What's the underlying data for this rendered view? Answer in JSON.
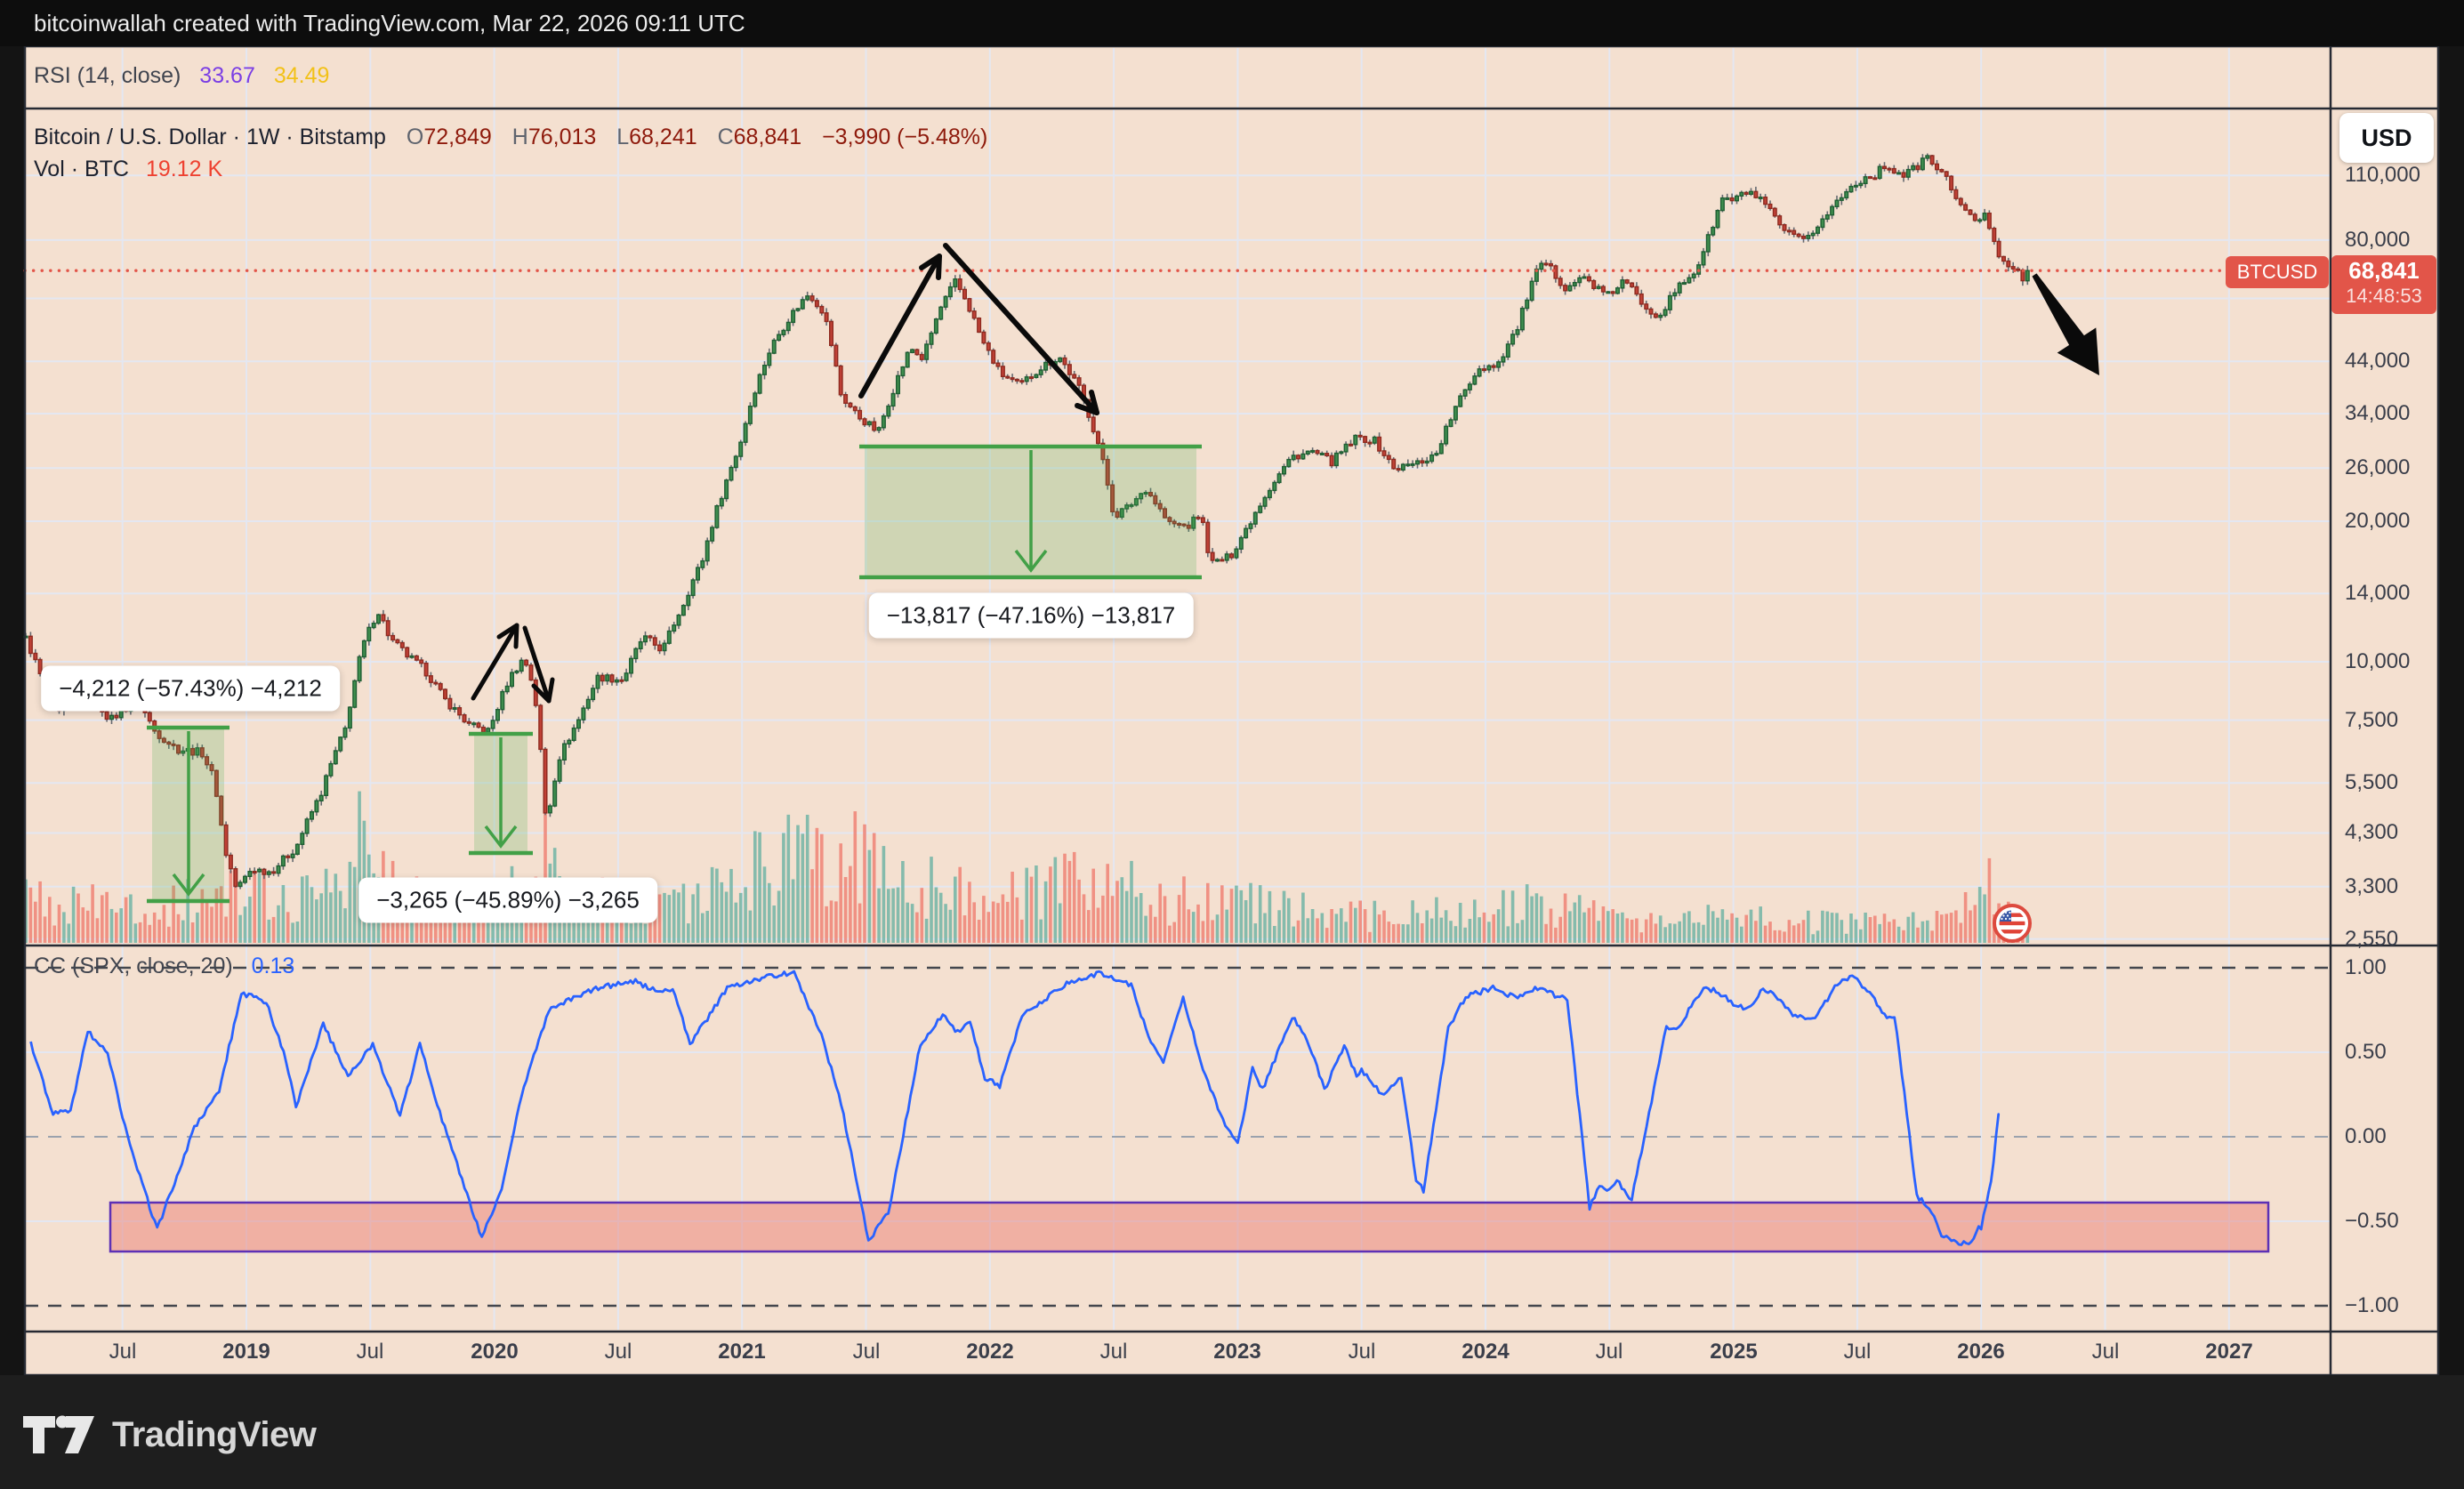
{
  "header": {
    "text": "bitcoinwallah created with TradingView.com, Mar 22, 2026 09:11 UTC"
  },
  "rsi_pane": {
    "label": "RSI (14, close)",
    "value1": "33.67",
    "value2": "34.49"
  },
  "main_pane": {
    "legend": {
      "symbol": "Bitcoin / U.S. Dollar · 1W · Bitstamp",
      "o_label": "O",
      "o": "72,849",
      "h_label": "H",
      "h": "76,013",
      "l_label": "L",
      "l": "68,241",
      "c_label": "C",
      "c": "68,841",
      "change": "−3,990 (−5.48%)"
    },
    "volume_row": {
      "label": "Vol · BTC",
      "value": "19.12 K"
    },
    "currency_button": "USD",
    "last_price_marker": {
      "symbol_label": "BTCUSD",
      "price": "68,841",
      "countdown": "14:48:53"
    },
    "price_axis_labels": [
      {
        "text": "110,000",
        "value": 110000
      },
      {
        "text": "80,000",
        "value": 80000
      },
      {
        "text": "44,000",
        "value": 44000
      },
      {
        "text": "34,000",
        "value": 34000
      },
      {
        "text": "26,000",
        "value": 26000
      },
      {
        "text": "20,000",
        "value": 20000
      },
      {
        "text": "14,000",
        "value": 14000
      },
      {
        "text": "10,000",
        "value": 10000
      },
      {
        "text": "7,500",
        "value": 7500
      },
      {
        "text": "5,500",
        "value": 5500
      },
      {
        "text": "4,300",
        "value": 4300
      },
      {
        "text": "3,300",
        "value": 3300
      },
      {
        "text": "2,550",
        "value": 2550
      }
    ]
  },
  "cc_pane": {
    "label": "CC (SPX, close, 20)",
    "value": "0.13",
    "axis_labels": [
      {
        "text": "1.00",
        "value": 1.0
      },
      {
        "text": "0.50",
        "value": 0.5
      },
      {
        "text": "0.00",
        "value": 0.0
      },
      {
        "text": "−0.50",
        "value": -0.5
      },
      {
        "text": "−1.00",
        "value": -1.0
      }
    ]
  },
  "time_axis": {
    "ticks": [
      {
        "label": "Jul",
        "year": 2018.5
      },
      {
        "label": "2019",
        "year": 2019
      },
      {
        "label": "Jul",
        "year": 2019.5
      },
      {
        "label": "2020",
        "year": 2020
      },
      {
        "label": "Jul",
        "year": 2020.5
      },
      {
        "label": "2021",
        "year": 2021
      },
      {
        "label": "Jul",
        "year": 2021.5
      },
      {
        "label": "2022",
        "year": 2022
      },
      {
        "label": "Jul",
        "year": 2022.5
      },
      {
        "label": "2023",
        "year": 2023
      },
      {
        "label": "Jul",
        "year": 2023.5
      },
      {
        "label": "2024",
        "year": 2024
      },
      {
        "label": "Jul",
        "year": 2024.5
      },
      {
        "label": "2025",
        "year": 2025
      },
      {
        "label": "Jul",
        "year": 2025.5
      },
      {
        "label": "2026",
        "year": 2026
      },
      {
        "label": "Jul",
        "year": 2026.5
      },
      {
        "label": "2027",
        "year": 2027
      }
    ]
  },
  "footer": {
    "brand": "TradingView"
  },
  "colors": {
    "pane_bg": "#f4e0d0",
    "grid": "#e4e7f1",
    "up": "#3f8e4e",
    "up_border": "#1f5e33",
    "down": "#c04136",
    "down_border": "#8e2a20",
    "wick": "#666a70",
    "vol_up": "rgba(105,177,163,0.8)",
    "vol_down": "rgba(239,131,118,0.85)",
    "measure_green": "#42a047",
    "measure_fill": "rgba(76,175,80,0.22)",
    "price_line": "#e25549",
    "cc_line": "#2962ff",
    "band_fill": "rgba(233,109,100,0.42)",
    "band_border": "#5d30b5",
    "separator": "#262a33",
    "annotation": "#0a0a0a"
  },
  "chart_data": {
    "type": "candlestick",
    "symbol": "BTCUSD Bitstamp weekly, log scale",
    "ohlc_current": {
      "open": 72849,
      "high": 76013,
      "low": 68241,
      "close": 68841,
      "change": -3990,
      "change_pct": -5.48
    },
    "volume_current_btc": 19120,
    "rsi": {
      "period": 14,
      "source": "close",
      "value": 33.67,
      "ma_value": 34.49
    },
    "correlation_spx": {
      "length": 20,
      "source": "close",
      "value": 0.13,
      "range": [
        -1,
        1
      ]
    },
    "price_axis_range_visible": [
      2550,
      150000
    ],
    "time_range_visible": [
      "2018-02",
      "2027-06"
    ],
    "price_path_anchors": [
      [
        2018.11,
        11200
      ],
      [
        2018.18,
        9000
      ],
      [
        2018.24,
        7600
      ],
      [
        2018.31,
        9600
      ],
      [
        2018.38,
        8400
      ],
      [
        2018.45,
        7500
      ],
      [
        2018.56,
        8300
      ],
      [
        2018.63,
        7100
      ],
      [
        2018.72,
        6500
      ],
      [
        2018.82,
        6400
      ],
      [
        2018.87,
        5600
      ],
      [
        2018.91,
        4000
      ],
      [
        2018.96,
        3250
      ],
      [
        2019.02,
        3600
      ],
      [
        2019.1,
        3550
      ],
      [
        2019.2,
        4000
      ],
      [
        2019.3,
        5200
      ],
      [
        2019.4,
        7200
      ],
      [
        2019.47,
        10800
      ],
      [
        2019.53,
        12900
      ],
      [
        2019.58,
        11200
      ],
      [
        2019.65,
        10300
      ],
      [
        2019.72,
        9600
      ],
      [
        2019.8,
        8300
      ],
      [
        2019.9,
        7300
      ],
      [
        2019.98,
        7100
      ],
      [
        2020.06,
        9200
      ],
      [
        2020.12,
        10200
      ],
      [
        2020.16,
        8800
      ],
      [
        2020.21,
        4400
      ],
      [
        2020.26,
        6200
      ],
      [
        2020.34,
        7500
      ],
      [
        2020.42,
        9300
      ],
      [
        2020.52,
        9150
      ],
      [
        2020.6,
        11300
      ],
      [
        2020.68,
        10600
      ],
      [
        2020.76,
        13200
      ],
      [
        2020.84,
        16500
      ],
      [
        2020.92,
        23000
      ],
      [
        2020.99,
        29000
      ],
      [
        2021.05,
        38000
      ],
      [
        2021.12,
        47500
      ],
      [
        2021.2,
        55500
      ],
      [
        2021.27,
        61500
      ],
      [
        2021.33,
        56000
      ],
      [
        2021.4,
        37000
      ],
      [
        2021.47,
        33500
      ],
      [
        2021.55,
        31000
      ],
      [
        2021.62,
        39500
      ],
      [
        2021.68,
        47000
      ],
      [
        2021.73,
        44500
      ],
      [
        2021.8,
        57000
      ],
      [
        2021.86,
        65000
      ],
      [
        2021.9,
        60000
      ],
      [
        2021.97,
        48500
      ],
      [
        2022.04,
        41500
      ],
      [
        2022.12,
        39000
      ],
      [
        2022.2,
        42500
      ],
      [
        2022.28,
        45000
      ],
      [
        2022.36,
        38500
      ],
      [
        2022.44,
        29000
      ],
      [
        2022.5,
        20500
      ],
      [
        2022.56,
        21500
      ],
      [
        2022.63,
        23500
      ],
      [
        2022.72,
        19800
      ],
      [
        2022.8,
        19500
      ],
      [
        2022.85,
        20800
      ],
      [
        2022.89,
        16200
      ],
      [
        2022.97,
        16800
      ],
      [
        2023.04,
        19500
      ],
      [
        2023.12,
        23200
      ],
      [
        2023.22,
        27500
      ],
      [
        2023.3,
        28200
      ],
      [
        2023.38,
        26800
      ],
      [
        2023.48,
        30200
      ],
      [
        2023.55,
        29800
      ],
      [
        2023.63,
        25900
      ],
      [
        2023.72,
        26600
      ],
      [
        2023.8,
        27800
      ],
      [
        2023.88,
        35000
      ],
      [
        2023.97,
        42500
      ],
      [
        2024.05,
        43500
      ],
      [
        2024.13,
        52000
      ],
      [
        2024.2,
        67500
      ],
      [
        2024.24,
        71500
      ],
      [
        2024.32,
        63500
      ],
      [
        2024.4,
        66500
      ],
      [
        2024.49,
        60500
      ],
      [
        2024.56,
        65500
      ],
      [
        2024.64,
        58000
      ],
      [
        2024.7,
        55000
      ],
      [
        2024.78,
        63500
      ],
      [
        2024.85,
        69000
      ],
      [
        2024.9,
        81000
      ],
      [
        2024.96,
        99000
      ],
      [
        2025.0,
        97000
      ],
      [
        2025.06,
        102000
      ],
      [
        2025.12,
        96000
      ],
      [
        2025.2,
        84000
      ],
      [
        2025.28,
        79000
      ],
      [
        2025.35,
        87000
      ],
      [
        2025.42,
        97000
      ],
      [
        2025.5,
        107000
      ],
      [
        2025.57,
        110500
      ],
      [
        2025.62,
        116000
      ],
      [
        2025.68,
        110000
      ],
      [
        2025.73,
        113500
      ],
      [
        2025.78,
        120500
      ],
      [
        2025.83,
        113000
      ],
      [
        2025.88,
        104000
      ],
      [
        2025.93,
        92000
      ],
      [
        2025.97,
        88500
      ],
      [
        2026.02,
        90000
      ],
      [
        2026.07,
        75000
      ],
      [
        2026.12,
        70000
      ],
      [
        2026.17,
        66000
      ],
      [
        2026.19,
        68841
      ]
    ],
    "volume_base_anchors": [
      [
        2018.11,
        50
      ],
      [
        2018.6,
        42
      ],
      [
        2018.95,
        60
      ],
      [
        2019.2,
        55
      ],
      [
        2019.45,
        95
      ],
      [
        2019.6,
        70
      ],
      [
        2019.9,
        45
      ],
      [
        2020.18,
        80
      ],
      [
        2020.5,
        50
      ],
      [
        2020.9,
        60
      ],
      [
        2021.05,
        90
      ],
      [
        2021.35,
        115
      ],
      [
        2021.6,
        85
      ],
      [
        2021.9,
        65
      ],
      [
        2022.1,
        55
      ],
      [
        2022.45,
        80
      ],
      [
        2022.75,
        50
      ],
      [
        2022.95,
        60
      ],
      [
        2023.2,
        42
      ],
      [
        2023.6,
        32
      ],
      [
        2023.95,
        38
      ],
      [
        2024.2,
        48
      ],
      [
        2024.5,
        30
      ],
      [
        2024.8,
        28
      ],
      [
        2025.0,
        34
      ],
      [
        2025.3,
        26
      ],
      [
        2025.6,
        28
      ],
      [
        2025.85,
        36
      ],
      [
        2026.0,
        48
      ],
      [
        2026.19,
        42
      ]
    ],
    "measurements": [
      {
        "text": "−4,212 (−57.43%) −4,212",
        "delta": -4212,
        "pct": -57.43,
        "from_year": 2018.62,
        "to_year": 2018.91,
        "from_price": 7240,
        "to_price": 3070,
        "label_cx": 214,
        "label_cy": 774
      },
      {
        "text": "−3,265 (−45.89%) −3,265",
        "delta": -3265,
        "pct": -45.89,
        "from_year": 2019.92,
        "to_year": 2020.135,
        "from_price": 7020,
        "to_price": 3900,
        "label_cx": 571,
        "label_cy": 1012
      },
      {
        "text": "−13,817 (−47.16%) −13,817",
        "delta": -13817,
        "pct": -47.16,
        "from_year": 2021.495,
        "to_year": 2022.835,
        "from_price": 28900,
        "to_price": 15150,
        "label_cx": 1159,
        "label_cy": 692
      }
    ],
    "last_price_line": {
      "value": 68841
    },
    "hidden_gridline_value": 60000,
    "cc_band": {
      "from_value": -0.39,
      "to_value": -0.68,
      "from_year": 2018.45,
      "to_year": 2027.17
    },
    "cc_anchors": [
      [
        2018.13,
        0.55
      ],
      [
        2018.22,
        0.14
      ],
      [
        2018.29,
        0.15
      ],
      [
        2018.36,
        0.62
      ],
      [
        2018.44,
        0.5
      ],
      [
        2018.52,
        0.0
      ],
      [
        2018.64,
        -0.55
      ],
      [
        2018.79,
        0.05
      ],
      [
        2018.89,
        0.27
      ],
      [
        2018.98,
        0.85
      ],
      [
        2019.08,
        0.8
      ],
      [
        2019.16,
        0.45
      ],
      [
        2019.2,
        0.18
      ],
      [
        2019.31,
        0.67
      ],
      [
        2019.41,
        0.35
      ],
      [
        2019.51,
        0.55
      ],
      [
        2019.62,
        0.12
      ],
      [
        2019.7,
        0.55
      ],
      [
        2019.79,
        0.1
      ],
      [
        2019.95,
        -0.6
      ],
      [
        2020.03,
        -0.3
      ],
      [
        2020.11,
        0.25
      ],
      [
        2020.22,
        0.75
      ],
      [
        2020.41,
        0.88
      ],
      [
        2020.57,
        0.92
      ],
      [
        2020.67,
        0.85
      ],
      [
        2020.72,
        0.88
      ],
      [
        2020.79,
        0.55
      ],
      [
        2020.86,
        0.7
      ],
      [
        2020.94,
        0.88
      ],
      [
        2021.1,
        0.95
      ],
      [
        2021.21,
        0.97
      ],
      [
        2021.32,
        0.6
      ],
      [
        2021.4,
        0.2
      ],
      [
        2021.51,
        -0.62
      ],
      [
        2021.59,
        -0.45
      ],
      [
        2021.72,
        0.55
      ],
      [
        2021.81,
        0.72
      ],
      [
        2021.87,
        0.62
      ],
      [
        2021.92,
        0.68
      ],
      [
        2021.98,
        0.35
      ],
      [
        2022.04,
        0.3
      ],
      [
        2022.13,
        0.72
      ],
      [
        2022.19,
        0.78
      ],
      [
        2022.3,
        0.9
      ],
      [
        2022.45,
        0.97
      ],
      [
        2022.57,
        0.9
      ],
      [
        2022.65,
        0.55
      ],
      [
        2022.7,
        0.45
      ],
      [
        2022.78,
        0.82
      ],
      [
        2022.86,
        0.4
      ],
      [
        2022.94,
        0.1
      ],
      [
        2023.0,
        -0.05
      ],
      [
        2023.06,
        0.41
      ],
      [
        2023.1,
        0.28
      ],
      [
        2023.22,
        0.71
      ],
      [
        2023.28,
        0.58
      ],
      [
        2023.35,
        0.28
      ],
      [
        2023.43,
        0.54
      ],
      [
        2023.48,
        0.36
      ],
      [
        2023.5,
        0.39
      ],
      [
        2023.59,
        0.24
      ],
      [
        2023.66,
        0.35
      ],
      [
        2023.72,
        -0.25
      ],
      [
        2023.75,
        -0.32
      ],
      [
        2023.85,
        0.64
      ],
      [
        2023.92,
        0.83
      ],
      [
        2024.03,
        0.88
      ],
      [
        2024.13,
        0.82
      ],
      [
        2024.21,
        0.88
      ],
      [
        2024.33,
        0.81
      ],
      [
        2024.42,
        -0.42
      ],
      [
        2024.46,
        -0.28
      ],
      [
        2024.5,
        -0.32
      ],
      [
        2024.53,
        -0.26
      ],
      [
        2024.59,
        -0.37
      ],
      [
        2024.73,
        0.65
      ],
      [
        2024.78,
        0.65
      ],
      [
        2024.88,
        0.89
      ],
      [
        2024.93,
        0.86
      ],
      [
        2025.02,
        0.77
      ],
      [
        2025.06,
        0.76
      ],
      [
        2025.12,
        0.88
      ],
      [
        2025.19,
        0.81
      ],
      [
        2025.25,
        0.71
      ],
      [
        2025.33,
        0.7
      ],
      [
        2025.42,
        0.91
      ],
      [
        2025.49,
        0.95
      ],
      [
        2025.56,
        0.83
      ],
      [
        2025.62,
        0.69
      ],
      [
        2025.65,
        0.71
      ],
      [
        2025.67,
        0.5
      ],
      [
        2025.74,
        -0.35
      ],
      [
        2025.79,
        -0.42
      ],
      [
        2025.84,
        -0.58
      ],
      [
        2025.92,
        -0.63
      ],
      [
        2025.96,
        -0.62
      ],
      [
        2025.99,
        -0.53
      ],
      [
        2026.0,
        -0.54
      ],
      [
        2026.04,
        -0.27
      ],
      [
        2026.07,
        0.13
      ]
    ]
  }
}
